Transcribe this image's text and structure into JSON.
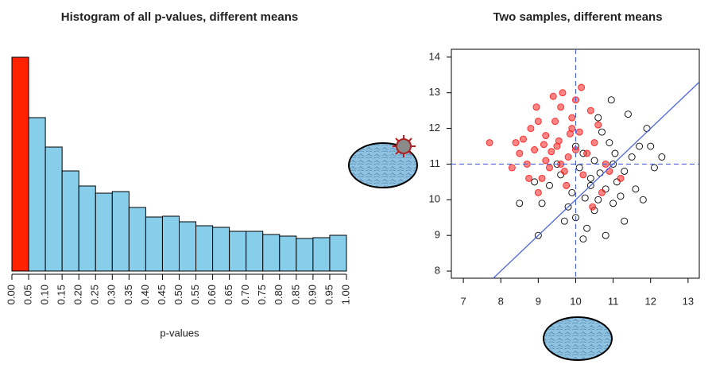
{
  "chart_data": [
    {
      "type": "histogram",
      "title": "Histogram of all p-values, different means",
      "xlabel": "p-values",
      "bins": [
        0,
        0.05,
        0.1,
        0.15,
        0.2,
        0.25,
        0.3,
        0.35,
        0.4,
        0.45,
        0.5,
        0.55,
        0.6,
        0.65,
        0.7,
        0.75,
        0.8,
        0.85,
        0.9,
        0.95,
        1
      ],
      "values": [
        269,
        193,
        156,
        126,
        107,
        98,
        100,
        80,
        68,
        69,
        62,
        57,
        55,
        50,
        50,
        46,
        44,
        41,
        42,
        45
      ],
      "colors": [
        "#ff2200",
        "#87ceeb",
        "#87ceeb",
        "#87ceeb",
        "#87ceeb",
        "#87ceeb",
        "#87ceeb",
        "#87ceeb",
        "#87ceeb",
        "#87ceeb",
        "#87ceeb",
        "#87ceeb",
        "#87ceeb",
        "#87ceeb",
        "#87ceeb",
        "#87ceeb",
        "#87ceeb",
        "#87ceeb",
        "#87ceeb",
        "#87ceeb"
      ],
      "xlim": [
        0,
        1
      ],
      "ylim": [
        0,
        270
      ],
      "xticks": [
        {
          "value": 0,
          "label": "0.00"
        },
        {
          "value": 0.05,
          "label": "0.05"
        },
        {
          "value": 0.1,
          "label": "0.10"
        },
        {
          "value": 0.15,
          "label": "0.15"
        },
        {
          "value": 0.2,
          "label": "0.20"
        },
        {
          "value": 0.25,
          "label": "0.25"
        },
        {
          "value": 0.3,
          "label": "0.30"
        },
        {
          "value": 0.35,
          "label": "0.35"
        },
        {
          "value": 0.4,
          "label": "0.40"
        },
        {
          "value": 0.45,
          "label": "0.45"
        },
        {
          "value": 0.5,
          "label": "0.50"
        },
        {
          "value": 0.55,
          "label": "0.55"
        },
        {
          "value": 0.6,
          "label": "0.60"
        },
        {
          "value": 0.65,
          "label": "0.65"
        },
        {
          "value": 0.7,
          "label": "0.70"
        },
        {
          "value": 0.75,
          "label": "0.75"
        },
        {
          "value": 0.8,
          "label": "0.80"
        },
        {
          "value": 0.85,
          "label": "0.85"
        },
        {
          "value": 0.9,
          "label": "0.90"
        },
        {
          "value": 0.95,
          "label": "0.95"
        },
        {
          "value": 1,
          "label": "1.00"
        }
      ]
    },
    {
      "type": "scatter",
      "title": "Two samples, different means",
      "xlim": [
        6.68,
        13.3
      ],
      "ylim": [
        7.8,
        14.22
      ],
      "xticks": [
        7,
        8,
        9,
        10,
        11,
        12,
        13
      ],
      "yticks": [
        8,
        9,
        10,
        11,
        12,
        13,
        14
      ],
      "vlines": [
        10
      ],
      "hlines": [
        11
      ],
      "line_color": "#4a64dc",
      "abline": {
        "slope": 1,
        "intercept": 0
      },
      "series": [
        {
          "color": "#000000",
          "filled": false,
          "x": [
            10.4,
            10.8,
            10.1,
            11.0,
            10.6,
            9.9,
            11.3,
            10.2,
            10.9,
            10.5,
            11.5,
            9.6,
            10.0,
            11.2,
            10.7,
            9.3,
            11.7,
            10.3,
            11.0,
            9.1,
            11.9,
            10.6,
            8.9,
            12.3,
            10.8,
            9.7,
            11.4,
            10.4,
            10.65,
            11.1,
            9.8,
            10.25,
            11.6,
            8.5,
            9.0,
            12.1,
            10.95,
            11.8,
            10.0,
            9.5,
            10.5,
            11.3,
            12.0,
            10.2,
            11.05
          ],
          "values": [
            10.6,
            10.3,
            10.9,
            11.0,
            10.0,
            10.2,
            10.8,
            11.3,
            11.6,
            9.7,
            11.2,
            10.7,
            9.5,
            10.1,
            11.9,
            10.4,
            11.5,
            9.2,
            9.9,
            9.9,
            12.0,
            12.3,
            10.5,
            11.2,
            9.0,
            9.4,
            12.4,
            10.4,
            10.75,
            10.5,
            9.8,
            10.05,
            10.3,
            9.9,
            9.0,
            10.9,
            12.8,
            10.0,
            11.5,
            11.0,
            11.1,
            9.4,
            11.5,
            8.9,
            11.3
          ]
        },
        {
          "color": "#ff2020",
          "filled": true,
          "x": [
            9.5,
            9.2,
            9.8,
            8.9,
            10.1,
            9.0,
            9.6,
            9.3,
            10.3,
            8.7,
            9.9,
            10.5,
            9.1,
            8.6,
            9.7,
            10.0,
            9.4,
            8.8,
            10.6,
            9.2,
            9.55,
            9.85,
            9.35,
            10.2,
            8.5,
            8.4,
            9.0,
            10.8,
            9.65,
            10.4,
            8.3,
            9.75,
            10.9,
            9.45,
            8.95,
            10.7,
            11.2,
            7.7,
            10.0,
            9.15,
            10.15,
            9.6,
            8.75,
            10.45,
            9.9
          ],
          "values": [
            11.5,
            11.8,
            11.2,
            11.4,
            11.9,
            12.2,
            12.6,
            10.9,
            11.3,
            11.0,
            12.3,
            11.6,
            10.6,
            11.7,
            10.8,
            12.8,
            12.9,
            12.0,
            12.1,
            11.1,
            11.65,
            11.85,
            11.35,
            10.7,
            11.3,
            11.6,
            10.2,
            11.0,
            13.0,
            12.5,
            10.9,
            10.4,
            10.8,
            12.2,
            12.6,
            10.2,
            10.6,
            11.6,
            11.4,
            11.55,
            13.15,
            11.0,
            10.6,
            9.8,
            12.0
          ]
        }
      ]
    }
  ]
}
